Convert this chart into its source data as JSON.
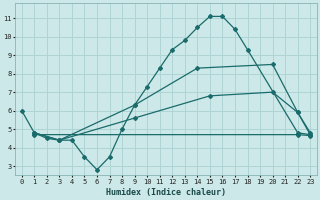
{
  "bg_color": "#cde8e8",
  "line_color": "#1a6b6b",
  "grid_color": "#aed4d4",
  "xlabel": "Humidex (Indice chaleur)",
  "xlim": [
    -0.5,
    23.5
  ],
  "ylim": [
    2.5,
    11.8
  ],
  "xticks": [
    0,
    1,
    2,
    3,
    4,
    5,
    6,
    7,
    8,
    9,
    10,
    11,
    12,
    13,
    14,
    15,
    16,
    17,
    18,
    19,
    20,
    21,
    22,
    23
  ],
  "yticks": [
    3,
    4,
    5,
    6,
    7,
    8,
    9,
    10,
    11
  ],
  "line1_x": [
    0,
    1,
    2,
    3,
    4,
    5,
    6,
    7,
    8,
    9,
    10,
    11,
    12,
    13,
    14,
    15,
    16,
    17,
    18,
    22,
    23
  ],
  "line1_y": [
    6.0,
    4.8,
    4.5,
    4.4,
    4.4,
    3.5,
    2.8,
    3.5,
    5.0,
    6.3,
    7.3,
    8.3,
    9.3,
    9.8,
    10.5,
    11.1,
    11.1,
    10.4,
    9.3,
    4.8,
    4.7
  ],
  "line2_x": [
    1,
    3,
    9,
    14,
    20,
    22,
    23
  ],
  "line2_y": [
    4.8,
    4.4,
    6.3,
    8.3,
    8.5,
    5.9,
    4.8
  ],
  "line3_x": [
    1,
    3,
    9,
    15,
    20,
    22,
    23
  ],
  "line3_y": [
    4.8,
    4.4,
    5.6,
    6.8,
    7.0,
    5.9,
    4.7
  ],
  "line4_x": [
    1,
    22,
    23
  ],
  "line4_y": [
    4.7,
    4.7,
    4.65
  ]
}
